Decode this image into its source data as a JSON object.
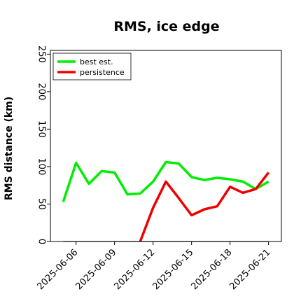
{
  "chart_data": {
    "type": "line",
    "title": "RMS, ice edge",
    "xlabel": "",
    "ylabel": "RMS distance (km)",
    "ylim": [
      0,
      255
    ],
    "yticks": [
      0,
      50,
      100,
      150,
      200,
      250
    ],
    "x": [
      "2025-06-05",
      "2025-06-06",
      "2025-06-07",
      "2025-06-08",
      "2025-06-09",
      "2025-06-10",
      "2025-06-11",
      "2025-06-12",
      "2025-06-13",
      "2025-06-14",
      "2025-06-15",
      "2025-06-16",
      "2025-06-17",
      "2025-06-18",
      "2025-06-19",
      "2025-06-20",
      "2025-06-21"
    ],
    "xlim": [
      "2025-06-04",
      "2025-06-22"
    ],
    "xticks": [
      "2025-06-06",
      "2025-06-09",
      "2025-06-12",
      "2025-06-15",
      "2025-06-18",
      "2025-06-21"
    ],
    "grid": false,
    "legend": "top-left",
    "baseline": {
      "value": 0,
      "color": "#808080"
    },
    "series": [
      {
        "name": "best est.",
        "color": "#00ee00",
        "values": [
          53,
          105,
          77,
          94,
          92,
          63,
          64,
          80,
          106,
          104,
          86,
          82,
          85,
          83,
          80,
          70,
          80
        ]
      },
      {
        "name": "persistence",
        "color": "#ee0000",
        "values": [
          null,
          null,
          null,
          null,
          null,
          null,
          0,
          45,
          80,
          58,
          35,
          43,
          47,
          73,
          65,
          70,
          92
        ]
      }
    ]
  }
}
